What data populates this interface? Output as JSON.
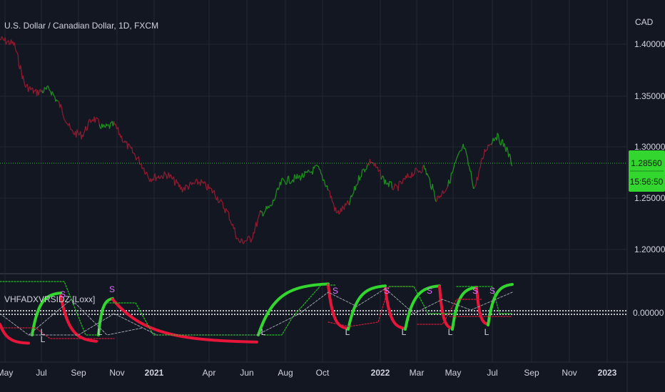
{
  "symbol_title": "U.S. Dollar / Canadian Dollar, 1D, FXCM",
  "currency": "CAD",
  "price_axis_ticks": [
    "1.40000",
    "1.35000",
    "1.30000",
    "1.25000",
    "1.20000"
  ],
  "last_price": "1.28560",
  "countdown": "15:56:50",
  "indicator": {
    "name": "VHFADXVRSIDZ [Loxx]",
    "axis_tick": "0.00000",
    "markers": [
      {
        "t": "S",
        "kind": "short"
      },
      {
        "t": "L",
        "kind": "long"
      },
      {
        "t": "S",
        "kind": "short"
      },
      {
        "t": "L",
        "kind": "long"
      },
      {
        "t": "L",
        "kind": "long"
      },
      {
        "t": "S",
        "kind": "short"
      },
      {
        "t": "L",
        "kind": "long"
      },
      {
        "t": "S",
        "kind": "short"
      },
      {
        "t": "L",
        "kind": "long"
      },
      {
        "t": "S",
        "kind": "short"
      },
      {
        "t": "L",
        "kind": "long"
      },
      {
        "t": "S",
        "kind": "short"
      },
      {
        "t": "L",
        "kind": "long"
      },
      {
        "t": "S",
        "kind": "short"
      },
      {
        "t": "L",
        "kind": "long"
      }
    ]
  },
  "time_axis": [
    "May",
    "Jul",
    "Sep",
    "Nov",
    "2021",
    "Apr",
    "Jun",
    "Aug",
    "Oct",
    "2022",
    "Mar",
    "May",
    "Jul",
    "Sep",
    "Nov",
    "2023"
  ],
  "colors": {
    "background": "#131722",
    "grid": "#232733",
    "bull": "#1e8c1e",
    "bear": "#8c1b30",
    "bright_green": "#33d62e",
    "bright_red": "#e8153a",
    "price_line": "#2fbf2f",
    "text": "#d1d4dc",
    "short_marker": "#e070ff"
  },
  "chart_data": {
    "type": "line",
    "title": "U.S. Dollar / Canadian Dollar, 1D, FXCM",
    "ylabel": "CAD",
    "x": [
      "2020-05",
      "2020-06",
      "2020-07",
      "2020-08",
      "2020-09",
      "2020-10",
      "2020-11",
      "2020-12",
      "2021-01",
      "2021-02",
      "2021-03",
      "2021-04",
      "2021-05",
      "2021-06",
      "2021-07",
      "2021-08",
      "2021-09",
      "2021-10",
      "2021-11",
      "2021-12",
      "2022-01",
      "2022-02",
      "2022-03",
      "2022-04",
      "2022-05",
      "2022-06",
      "2022-07",
      "2022-08"
    ],
    "series": [
      {
        "values": [
          1.405,
          1.385,
          1.355,
          1.335,
          1.325,
          1.32,
          1.305,
          1.28,
          1.27,
          1.265,
          1.255,
          1.24,
          1.21,
          1.23,
          1.25,
          1.255,
          1.265,
          1.24,
          1.26,
          1.27,
          1.265,
          1.27,
          1.255,
          1.265,
          1.28,
          1.29,
          1.3,
          1.285
        ]
      }
    ],
    "ylim": [
      1.195,
      1.415
    ],
    "last_value": 1.2856
  }
}
